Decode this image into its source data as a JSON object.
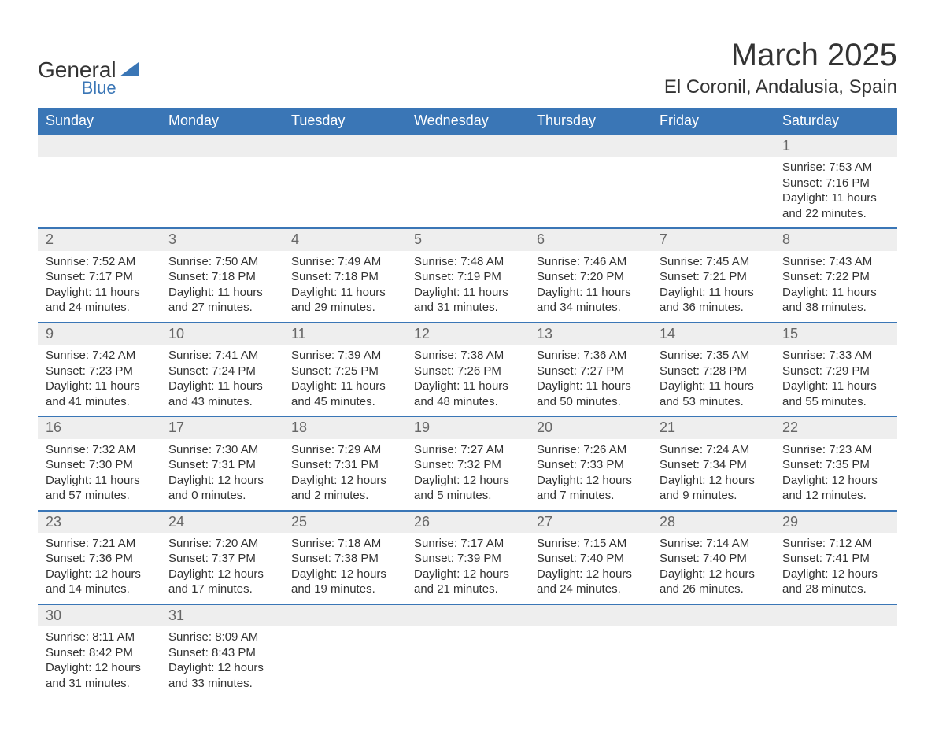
{
  "logo": {
    "text_main": "General",
    "text_sub": "Blue"
  },
  "title": "March 2025",
  "location": "El Coronil, Andalusia, Spain",
  "colors": {
    "header_bg": "#3a76b6",
    "header_fg": "#ffffff",
    "daynum_bg": "#eeeeee",
    "border": "#3a76b6",
    "text": "#333333"
  },
  "day_headers": [
    "Sunday",
    "Monday",
    "Tuesday",
    "Wednesday",
    "Thursday",
    "Friday",
    "Saturday"
  ],
  "weeks": [
    [
      {
        "n": "",
        "sunrise": "",
        "sunset": "",
        "daylight": ""
      },
      {
        "n": "",
        "sunrise": "",
        "sunset": "",
        "daylight": ""
      },
      {
        "n": "",
        "sunrise": "",
        "sunset": "",
        "daylight": ""
      },
      {
        "n": "",
        "sunrise": "",
        "sunset": "",
        "daylight": ""
      },
      {
        "n": "",
        "sunrise": "",
        "sunset": "",
        "daylight": ""
      },
      {
        "n": "",
        "sunrise": "",
        "sunset": "",
        "daylight": ""
      },
      {
        "n": "1",
        "sunrise": "Sunrise: 7:53 AM",
        "sunset": "Sunset: 7:16 PM",
        "daylight": "Daylight: 11 hours and 22 minutes."
      }
    ],
    [
      {
        "n": "2",
        "sunrise": "Sunrise: 7:52 AM",
        "sunset": "Sunset: 7:17 PM",
        "daylight": "Daylight: 11 hours and 24 minutes."
      },
      {
        "n": "3",
        "sunrise": "Sunrise: 7:50 AM",
        "sunset": "Sunset: 7:18 PM",
        "daylight": "Daylight: 11 hours and 27 minutes."
      },
      {
        "n": "4",
        "sunrise": "Sunrise: 7:49 AM",
        "sunset": "Sunset: 7:18 PM",
        "daylight": "Daylight: 11 hours and 29 minutes."
      },
      {
        "n": "5",
        "sunrise": "Sunrise: 7:48 AM",
        "sunset": "Sunset: 7:19 PM",
        "daylight": "Daylight: 11 hours and 31 minutes."
      },
      {
        "n": "6",
        "sunrise": "Sunrise: 7:46 AM",
        "sunset": "Sunset: 7:20 PM",
        "daylight": "Daylight: 11 hours and 34 minutes."
      },
      {
        "n": "7",
        "sunrise": "Sunrise: 7:45 AM",
        "sunset": "Sunset: 7:21 PM",
        "daylight": "Daylight: 11 hours and 36 minutes."
      },
      {
        "n": "8",
        "sunrise": "Sunrise: 7:43 AM",
        "sunset": "Sunset: 7:22 PM",
        "daylight": "Daylight: 11 hours and 38 minutes."
      }
    ],
    [
      {
        "n": "9",
        "sunrise": "Sunrise: 7:42 AM",
        "sunset": "Sunset: 7:23 PM",
        "daylight": "Daylight: 11 hours and 41 minutes."
      },
      {
        "n": "10",
        "sunrise": "Sunrise: 7:41 AM",
        "sunset": "Sunset: 7:24 PM",
        "daylight": "Daylight: 11 hours and 43 minutes."
      },
      {
        "n": "11",
        "sunrise": "Sunrise: 7:39 AM",
        "sunset": "Sunset: 7:25 PM",
        "daylight": "Daylight: 11 hours and 45 minutes."
      },
      {
        "n": "12",
        "sunrise": "Sunrise: 7:38 AM",
        "sunset": "Sunset: 7:26 PM",
        "daylight": "Daylight: 11 hours and 48 minutes."
      },
      {
        "n": "13",
        "sunrise": "Sunrise: 7:36 AM",
        "sunset": "Sunset: 7:27 PM",
        "daylight": "Daylight: 11 hours and 50 minutes."
      },
      {
        "n": "14",
        "sunrise": "Sunrise: 7:35 AM",
        "sunset": "Sunset: 7:28 PM",
        "daylight": "Daylight: 11 hours and 53 minutes."
      },
      {
        "n": "15",
        "sunrise": "Sunrise: 7:33 AM",
        "sunset": "Sunset: 7:29 PM",
        "daylight": "Daylight: 11 hours and 55 minutes."
      }
    ],
    [
      {
        "n": "16",
        "sunrise": "Sunrise: 7:32 AM",
        "sunset": "Sunset: 7:30 PM",
        "daylight": "Daylight: 11 hours and 57 minutes."
      },
      {
        "n": "17",
        "sunrise": "Sunrise: 7:30 AM",
        "sunset": "Sunset: 7:31 PM",
        "daylight": "Daylight: 12 hours and 0 minutes."
      },
      {
        "n": "18",
        "sunrise": "Sunrise: 7:29 AM",
        "sunset": "Sunset: 7:31 PM",
        "daylight": "Daylight: 12 hours and 2 minutes."
      },
      {
        "n": "19",
        "sunrise": "Sunrise: 7:27 AM",
        "sunset": "Sunset: 7:32 PM",
        "daylight": "Daylight: 12 hours and 5 minutes."
      },
      {
        "n": "20",
        "sunrise": "Sunrise: 7:26 AM",
        "sunset": "Sunset: 7:33 PM",
        "daylight": "Daylight: 12 hours and 7 minutes."
      },
      {
        "n": "21",
        "sunrise": "Sunrise: 7:24 AM",
        "sunset": "Sunset: 7:34 PM",
        "daylight": "Daylight: 12 hours and 9 minutes."
      },
      {
        "n": "22",
        "sunrise": "Sunrise: 7:23 AM",
        "sunset": "Sunset: 7:35 PM",
        "daylight": "Daylight: 12 hours and 12 minutes."
      }
    ],
    [
      {
        "n": "23",
        "sunrise": "Sunrise: 7:21 AM",
        "sunset": "Sunset: 7:36 PM",
        "daylight": "Daylight: 12 hours and 14 minutes."
      },
      {
        "n": "24",
        "sunrise": "Sunrise: 7:20 AM",
        "sunset": "Sunset: 7:37 PM",
        "daylight": "Daylight: 12 hours and 17 minutes."
      },
      {
        "n": "25",
        "sunrise": "Sunrise: 7:18 AM",
        "sunset": "Sunset: 7:38 PM",
        "daylight": "Daylight: 12 hours and 19 minutes."
      },
      {
        "n": "26",
        "sunrise": "Sunrise: 7:17 AM",
        "sunset": "Sunset: 7:39 PM",
        "daylight": "Daylight: 12 hours and 21 minutes."
      },
      {
        "n": "27",
        "sunrise": "Sunrise: 7:15 AM",
        "sunset": "Sunset: 7:40 PM",
        "daylight": "Daylight: 12 hours and 24 minutes."
      },
      {
        "n": "28",
        "sunrise": "Sunrise: 7:14 AM",
        "sunset": "Sunset: 7:40 PM",
        "daylight": "Daylight: 12 hours and 26 minutes."
      },
      {
        "n": "29",
        "sunrise": "Sunrise: 7:12 AM",
        "sunset": "Sunset: 7:41 PM",
        "daylight": "Daylight: 12 hours and 28 minutes."
      }
    ],
    [
      {
        "n": "30",
        "sunrise": "Sunrise: 8:11 AM",
        "sunset": "Sunset: 8:42 PM",
        "daylight": "Daylight: 12 hours and 31 minutes."
      },
      {
        "n": "31",
        "sunrise": "Sunrise: 8:09 AM",
        "sunset": "Sunset: 8:43 PM",
        "daylight": "Daylight: 12 hours and 33 minutes."
      },
      {
        "n": "",
        "sunrise": "",
        "sunset": "",
        "daylight": ""
      },
      {
        "n": "",
        "sunrise": "",
        "sunset": "",
        "daylight": ""
      },
      {
        "n": "",
        "sunrise": "",
        "sunset": "",
        "daylight": ""
      },
      {
        "n": "",
        "sunrise": "",
        "sunset": "",
        "daylight": ""
      },
      {
        "n": "",
        "sunrise": "",
        "sunset": "",
        "daylight": ""
      }
    ]
  ]
}
